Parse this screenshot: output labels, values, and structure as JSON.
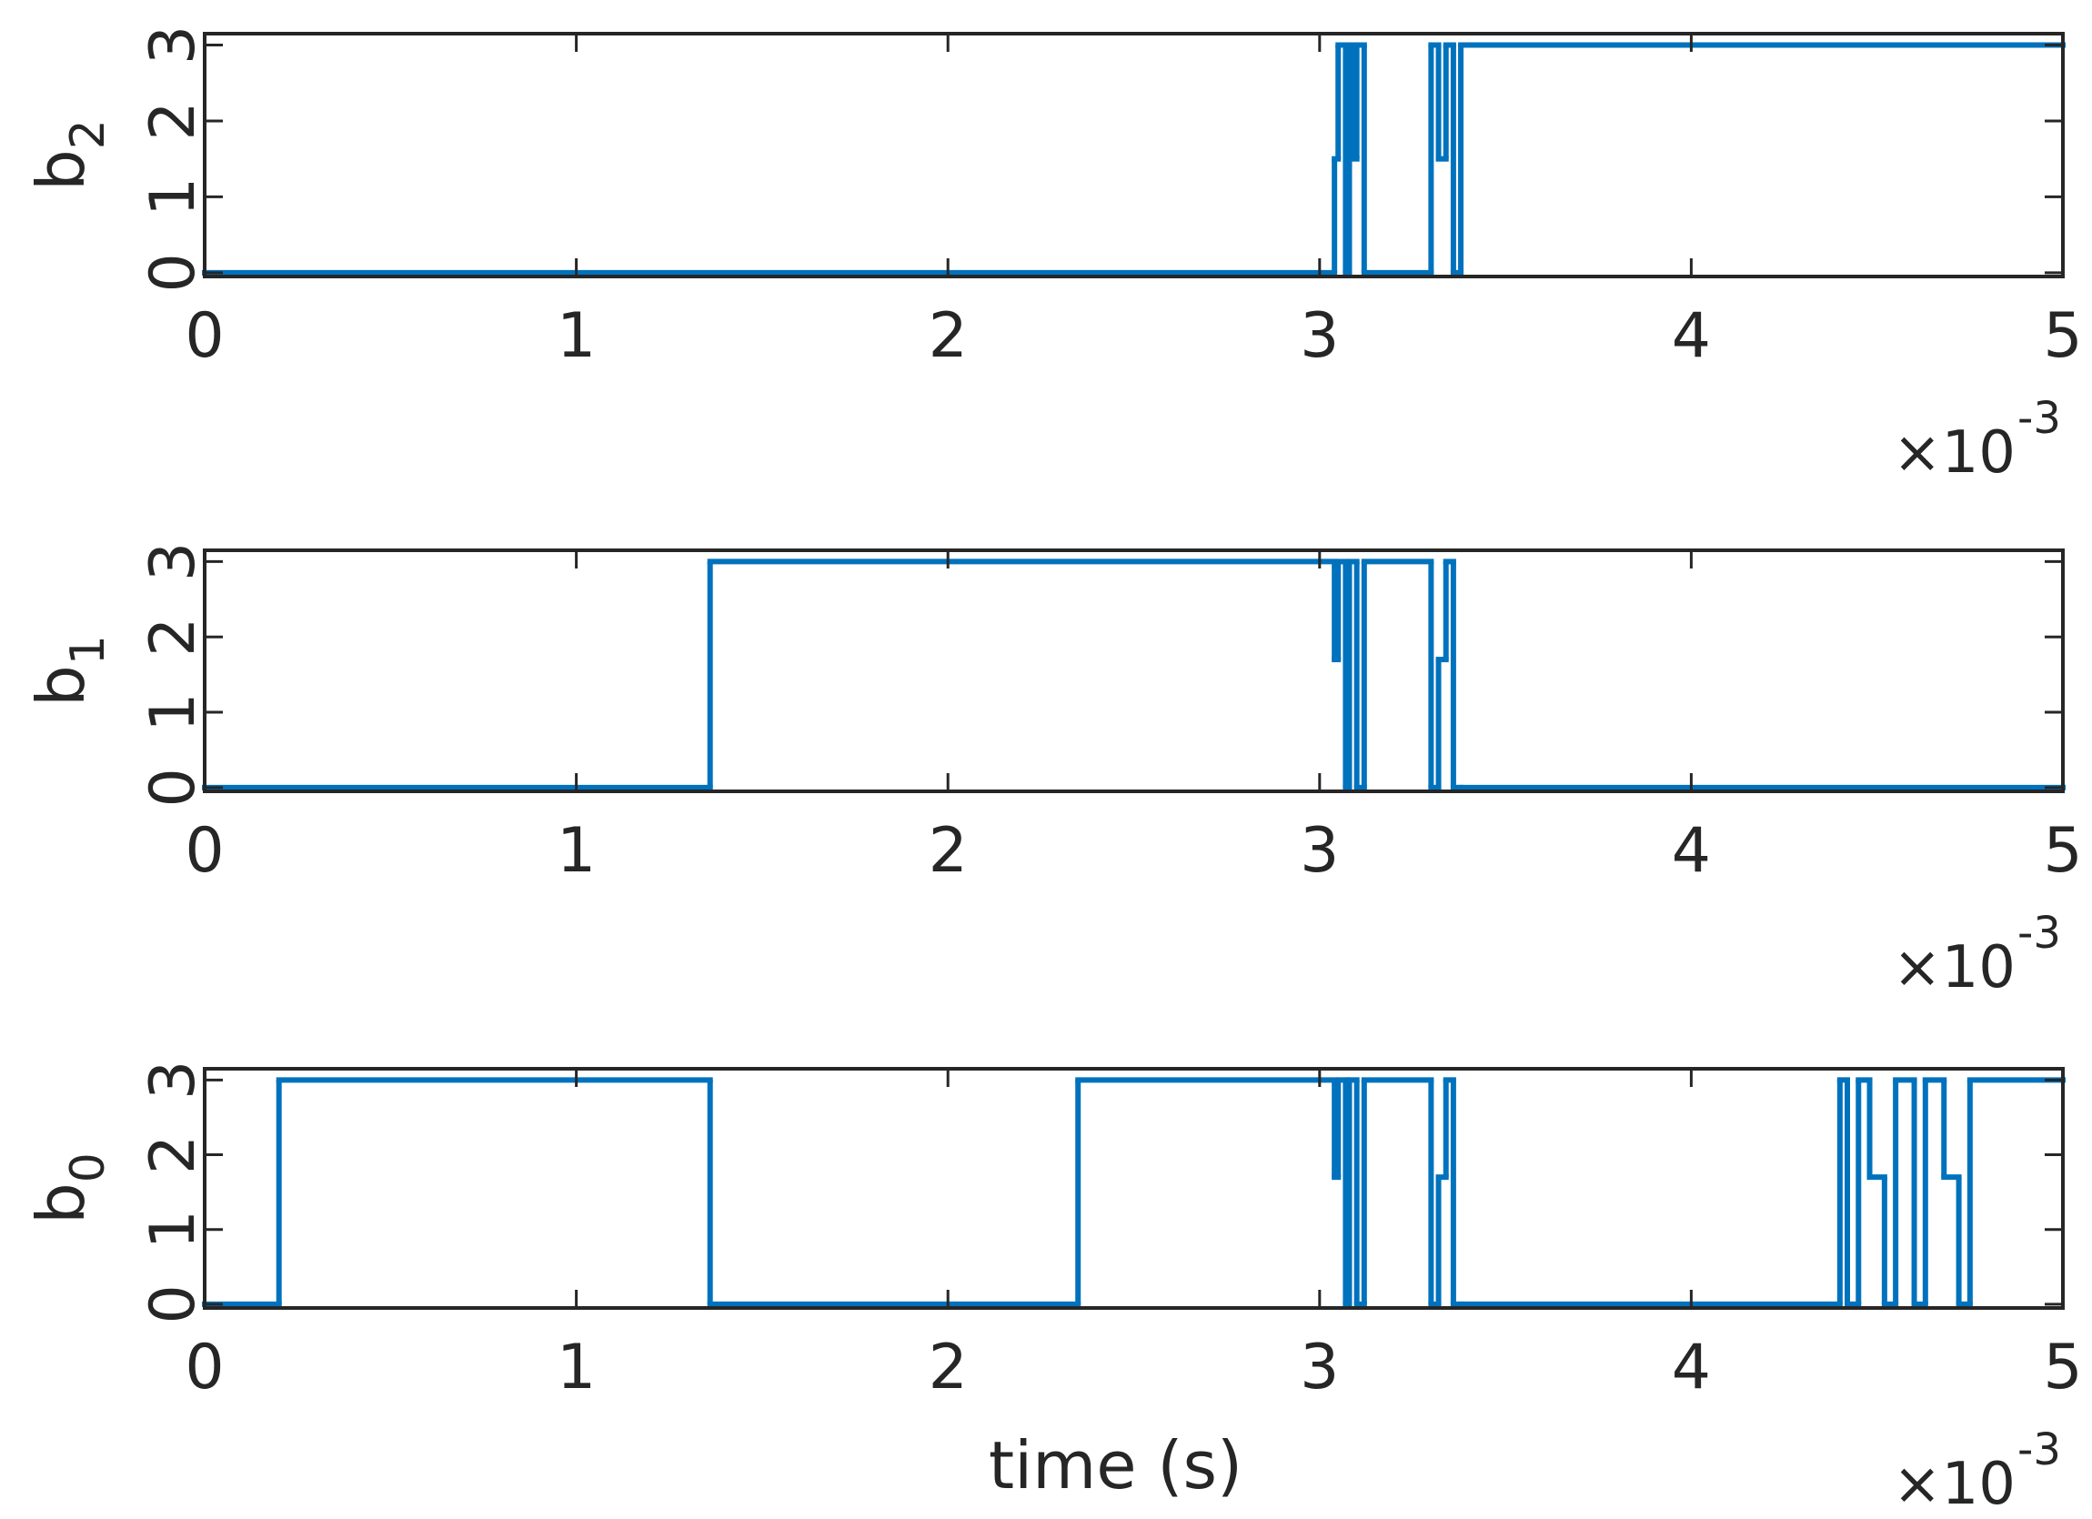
{
  "chart_data": [
    {
      "type": "line",
      "ylabel": "b",
      "ylabel_subscript": "2",
      "step": "post",
      "x": [
        0,
        3.04,
        3.05,
        3.07,
        3.08,
        3.09,
        3.1,
        3.12,
        3.3,
        3.32,
        3.34,
        3.36,
        3.38,
        5
      ],
      "values": [
        0,
        1.5,
        3,
        0,
        3,
        1.5,
        3,
        0,
        3,
        1.5,
        3,
        0,
        3,
        3
      ],
      "color": "#0072bd",
      "xlim": [
        0,
        5
      ],
      "xticks": [
        0,
        1,
        2,
        3,
        4,
        5
      ],
      "x_multiplier": "×10",
      "x_exponent": "-3",
      "ylim": [
        -0.05,
        3.15
      ],
      "yticks": [
        0,
        1,
        2,
        3
      ]
    },
    {
      "type": "line",
      "ylabel": "b",
      "ylabel_subscript": "1",
      "step": "post",
      "x": [
        0,
        1.36,
        3.04,
        3.05,
        3.07,
        3.08,
        3.1,
        3.12,
        3.3,
        3.32,
        3.34,
        3.36,
        3.38,
        5
      ],
      "values": [
        0,
        3,
        1.7,
        3,
        0,
        3,
        0,
        3,
        0,
        1.7,
        3,
        0,
        0,
        0
      ],
      "color": "#0072bd",
      "xlim": [
        0,
        5
      ],
      "xticks": [
        0,
        1,
        2,
        3,
        4,
        5
      ],
      "x_multiplier": "×10",
      "x_exponent": "-3",
      "ylim": [
        -0.05,
        3.15
      ],
      "yticks": [
        0,
        1,
        2,
        3
      ]
    },
    {
      "type": "line",
      "ylabel": "b",
      "ylabel_subscript": "0",
      "xlabel": "time (s)",
      "step": "post",
      "x": [
        0,
        0.2,
        1.36,
        2.35,
        3.04,
        3.05,
        3.07,
        3.08,
        3.1,
        3.12,
        3.3,
        3.32,
        3.34,
        3.36,
        3.38,
        4.4,
        4.42,
        4.45,
        4.48,
        4.52,
        4.55,
        4.6,
        4.63,
        4.68,
        4.72,
        4.75,
        5
      ],
      "values": [
        0,
        3,
        0,
        3,
        1.7,
        3,
        0,
        3,
        0,
        3,
        0,
        1.7,
        3,
        0,
        0,
        3,
        0,
        3,
        1.7,
        0,
        3,
        0,
        3,
        1.7,
        0,
        3,
        3
      ],
      "color": "#0072bd",
      "xlim": [
        0,
        5
      ],
      "xticks": [
        0,
        1,
        2,
        3,
        4,
        5
      ],
      "x_multiplier": "×10",
      "x_exponent": "-3",
      "ylim": [
        -0.05,
        3.15
      ],
      "yticks": [
        0,
        1,
        2,
        3
      ]
    }
  ]
}
